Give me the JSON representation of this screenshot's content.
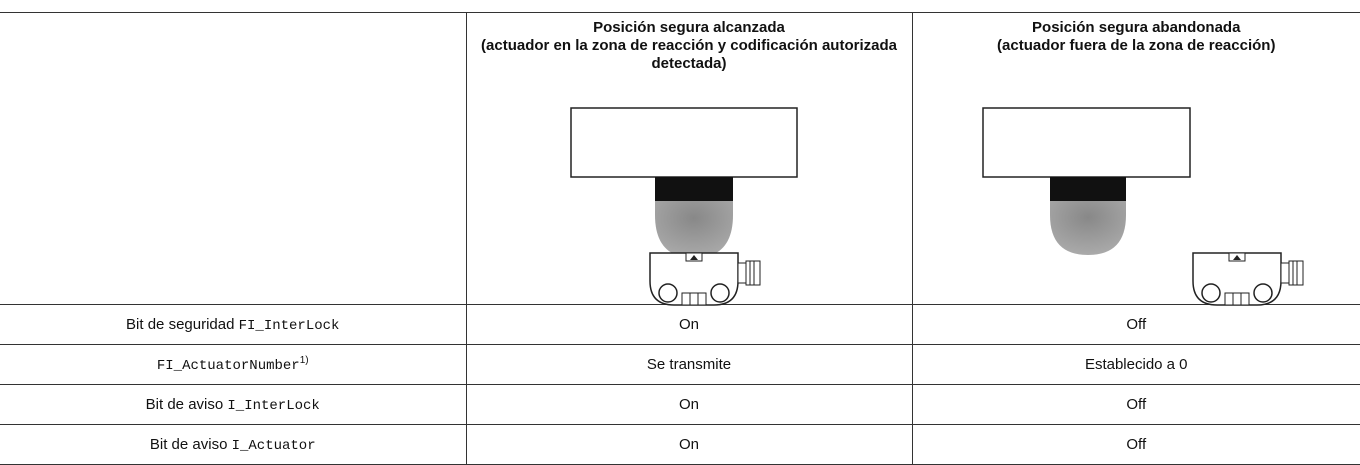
{
  "table": {
    "header": [
      "Posición segura alcanzada\n(actuador en la zona de reacción y codificación autorizada detectada)",
      "Posición segura abandonada\n(actuador fuera de la zona de reacción)"
    ],
    "rows": [
      {
        "label": "Bit de seguridad",
        "code": "FI_InterLock",
        "cells": [
          "On",
          "Off"
        ]
      },
      {
        "code": "FI_ActuatorNumber",
        "note": "1)",
        "cells": [
          "Se transmite",
          "Establecido a 0"
        ]
      },
      {
        "label": "Bit de aviso",
        "code": "I_InterLock",
        "cells": [
          "On",
          "Off"
        ]
      },
      {
        "label": "Bit de aviso",
        "code": "I_Actuator",
        "cells": [
          "On",
          "Off"
        ]
      }
    ]
  }
}
